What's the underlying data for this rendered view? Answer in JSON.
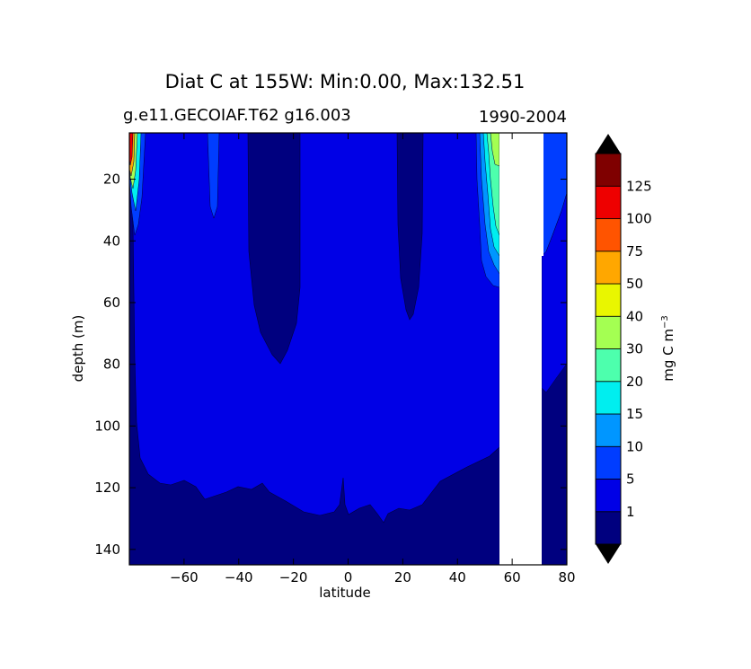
{
  "chart_data": {
    "type": "contour",
    "title": "Diat C at 155W: Min:0.00, Max:132.51",
    "subtitle_left": "g.e11.GECOIAF.T62 g16.003",
    "subtitle_right": "1990-2004",
    "xlabel": "latitude",
    "ylabel": "depth (m)",
    "xlim": [
      -80,
      80
    ],
    "ylim": [
      145,
      5
    ],
    "x_ticks": [
      -60,
      -40,
      -20,
      0,
      20,
      40,
      60,
      80
    ],
    "y_ticks": [
      20,
      40,
      60,
      80,
      100,
      120,
      140
    ],
    "colorbar": {
      "label": "mg C m",
      "label_sup": "−3",
      "levels": [
        0,
        1,
        5,
        10,
        15,
        20,
        30,
        40,
        50,
        75,
        100,
        125,
        150
      ],
      "tick_labels": [
        "1",
        "5",
        "10",
        "15",
        "20",
        "30",
        "40",
        "50",
        "75",
        "100",
        "125"
      ],
      "colors": [
        "#00007f",
        "#0000e6",
        "#003dff",
        "#0096ff",
        "#00eeef",
        "#4dffad",
        "#a4ff52",
        "#e9f600",
        "#ffa700",
        "#ff5400",
        "#ee0000",
        "#7f0000"
      ],
      "extend": "both"
    },
    "regions": [
      {
        "name": "deep-below-1",
        "level": "0-1",
        "color": "#00007f"
      },
      {
        "name": "main-1-5",
        "level": "1-5",
        "color": "#0000e6"
      },
      {
        "name": "south-trough-below-1",
        "level": "0-1",
        "color": "#00007f",
        "x_center": -22,
        "max_depth": 80
      },
      {
        "name": "equator-trough-below-1",
        "level": "0-1",
        "color": "#00007f",
        "x_center": 25,
        "max_depth": 66
      },
      {
        "name": "high-lat-south-maximum",
        "level": "75-150",
        "color": "#ee0000",
        "x": -77,
        "depth": 10
      },
      {
        "name": "high-lat-north-patch",
        "level": "5-40",
        "color": "#4dffad",
        "x": 52,
        "depth": 20
      },
      {
        "name": "missing-data",
        "x_range": [
          56,
          72
        ],
        "color": "#ffffff"
      }
    ]
  }
}
